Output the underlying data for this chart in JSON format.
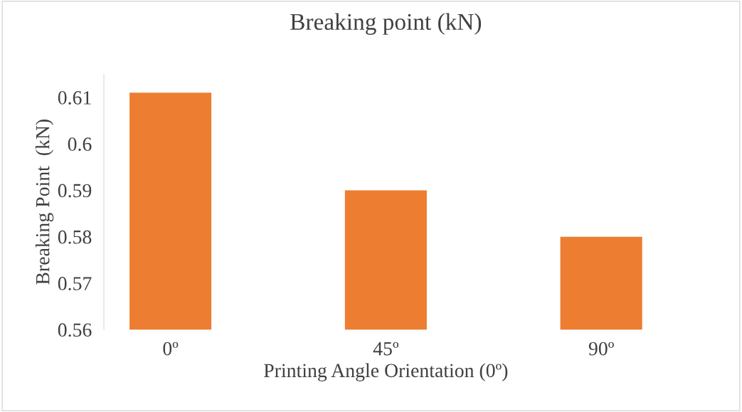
{
  "chart_data": {
    "type": "bar",
    "title": "Breaking point (kN)",
    "xlabel": "Printing Angle Orientation (0º)",
    "ylabel": "Breaking Point  (kN)",
    "categories": [
      "0º",
      "45º",
      "90º"
    ],
    "values": [
      0.611,
      0.59,
      0.58
    ],
    "color": "#ed7d31",
    "ylim": [
      0.56,
      0.615
    ],
    "yticks": [
      0.56,
      0.57,
      0.58,
      0.59,
      0.6,
      0.61
    ],
    "grid": false,
    "legend": false
  }
}
